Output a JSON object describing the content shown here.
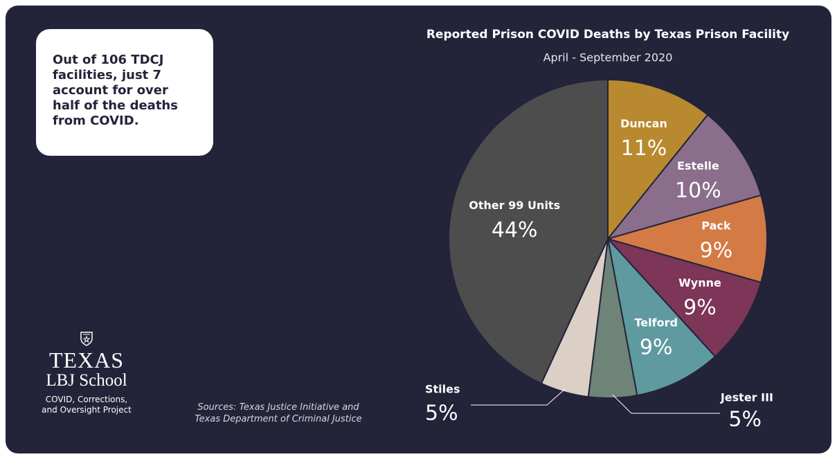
{
  "chart_data": {
    "type": "pie",
    "title": "Reported Prison COVID Deaths by Texas Prison Facility",
    "subtitle": "April - September 2020",
    "categories": [
      "Duncan",
      "Estelle",
      "Pack",
      "Wynne",
      "Telford",
      "Jester III",
      "Stiles",
      "Other 99 Units"
    ],
    "values": [
      11,
      10,
      9,
      9,
      9,
      5,
      5,
      44
    ],
    "value_labels": [
      "11%",
      "10%",
      "9%",
      "9%",
      "9%",
      "5%",
      "5%",
      "44%"
    ],
    "colors": [
      "#b8892e",
      "#8a6e8c",
      "#d47a45",
      "#7d3558",
      "#5f9aa0",
      "#6f8478",
      "#dccfc6",
      "#4d4d4d"
    ]
  },
  "callout": {
    "lines": [
      "Out of 106 TDCJ",
      "facilities, just 7",
      "account for over",
      "half of the deaths",
      "from COVID."
    ]
  },
  "logo": {
    "name": "TEXAS",
    "school": "LBJ School",
    "project_lines": [
      "COVID, Corrections,",
      "and Oversight Project"
    ]
  },
  "sources": {
    "lines": [
      "Sources: Texas Justice Initiative and",
      "Texas Department of Criminal Justice"
    ]
  }
}
